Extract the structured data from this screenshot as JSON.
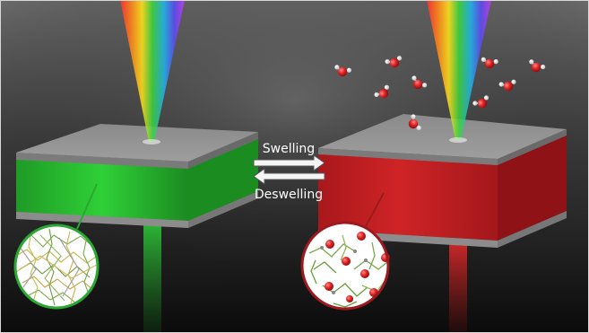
{
  "labels": {
    "forward": "Swelling",
    "reverse": "Deswelling"
  },
  "colors": {
    "swollen_film": "#d42222",
    "deswollen_film": "#22c42a",
    "substrate": "#8c8c8c",
    "water_oxygen": "#e02a2a",
    "water_hydrogen": "#f2f2f2",
    "background_top": "#6e6e6e",
    "background_bottom": "#0d0d0d"
  },
  "icons": {
    "incident_light": "rainbow-beam-icon",
    "water_molecule": "water-molecule-icon",
    "polymer_network": "polymer-network-icon",
    "reversible_arrows": "double-arrow-icon"
  }
}
